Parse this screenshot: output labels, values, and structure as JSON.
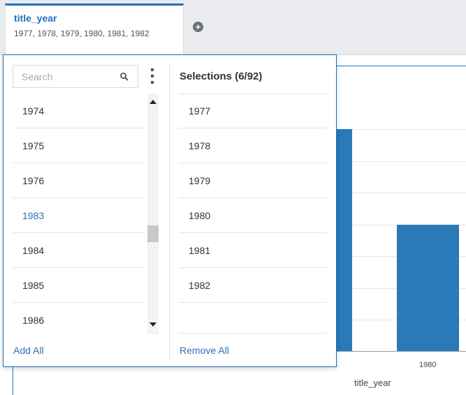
{
  "filter": {
    "title": "title_year",
    "values_text": "1977, 1978, 1979, 1980, 1981, 1982",
    "add_icon": "plus-circle-icon"
  },
  "search": {
    "placeholder": "Search",
    "value": ""
  },
  "available_list": {
    "items": [
      "1974",
      "1975",
      "1976",
      "1983",
      "1984",
      "1985",
      "1986"
    ],
    "highlighted": "1983"
  },
  "selections": {
    "header": "Selections (6/92)",
    "items": [
      "1977",
      "1978",
      "1979",
      "1980",
      "1981",
      "1982"
    ]
  },
  "actions": {
    "add_all": "Add All",
    "remove_all": "Remove All"
  },
  "chart": {
    "visible_tick_label": "1980",
    "x_axis_title": "title_year",
    "bar_color": "#2a7ab8"
  },
  "colors": {
    "accent": "#1f6fbf",
    "link": "#2d6fb7"
  }
}
